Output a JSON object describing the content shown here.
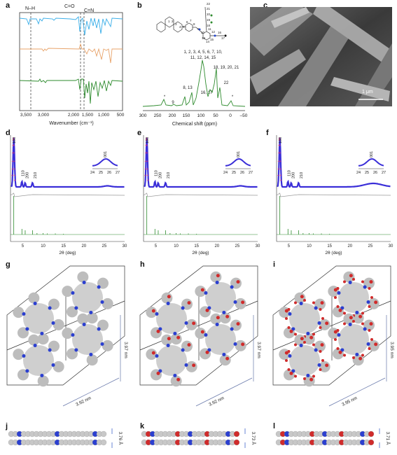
{
  "panel_labels": [
    "a",
    "b",
    "c",
    "d",
    "e",
    "f",
    "g",
    "h",
    "i",
    "j",
    "k",
    "l"
  ],
  "colors": {
    "blue": "#3aaee8",
    "orange": "#e8a36a",
    "green": "#2e8b2e",
    "purple": "#3a2ed8",
    "pink": "#e0306a",
    "grey": "#999999"
  },
  "chart_data": [
    {
      "type": "line",
      "panel": "a",
      "xlabel": "Wavenumber (cm⁻¹)",
      "xticks": [
        "3,500",
        "3,000",
        "2,000",
        "1,500",
        "1,000",
        "500"
      ],
      "annotations": [
        "N–H",
        "C=O",
        "C=N"
      ],
      "series": [
        {
          "color": "blue"
        },
        {
          "color": "orange"
        },
        {
          "color": "green"
        }
      ]
    },
    {
      "type": "line",
      "panel": "b",
      "xlabel": "Chemical shift (ppm)",
      "xticks": [
        "300",
        "250",
        "200",
        "150",
        "100",
        "50",
        "0",
        "–50"
      ],
      "xlim": [
        300,
        -50
      ],
      "peak_labels": [
        "1, 2, 3, 4, 5, 6, 7, 10,",
        "11, 12, 14, 15",
        "18, 19, 20, 21",
        "8, 13",
        "16, 17",
        "22",
        "9",
        "*",
        "*"
      ],
      "atom_labels": [
        "1",
        "2",
        "3",
        "4",
        "5",
        "6",
        "7",
        "8",
        "9",
        "10",
        "11",
        "12",
        "13",
        "14",
        "15",
        "16",
        "17",
        "18",
        "19",
        "20",
        "21",
        "22"
      ],
      "peaks_ppm": [
        {
          "label": "*",
          "ppm": 225
        },
        {
          "label": "9",
          "ppm": 190
        },
        {
          "label": "8, 13",
          "ppm": 155
        },
        {
          "label": "1–15",
          "ppm": 126
        },
        {
          "label": "16, 17",
          "ppm": 102
        },
        {
          "label": "18–21",
          "ppm": 65
        },
        {
          "label": "22",
          "ppm": 55
        },
        {
          "label": "*",
          "ppm": 28
        }
      ]
    },
    {
      "type": "scatter",
      "panels": [
        "d",
        "e",
        "f"
      ],
      "xlabel": "2θ (deg)",
      "xticks": [
        "5",
        "10",
        "15",
        "20",
        "25",
        "30"
      ],
      "xlim": [
        2,
        30
      ],
      "inset_xticks": [
        "24",
        "25",
        "26",
        "27"
      ],
      "inset_peak": "001",
      "reflections": [
        "100",
        "110",
        "200",
        "210"
      ]
    }
  ],
  "sem": {
    "scale_bar": "1 μm"
  },
  "structures": [
    {
      "panel": "g",
      "dim_vertical": "3.97 nm",
      "dim_diagonal": "3.92 nm"
    },
    {
      "panel": "h",
      "dim_vertical": "3.97 nm",
      "dim_diagonal": "3.92 nm"
    },
    {
      "panel": "i",
      "dim_vertical": "3.95 nm",
      "dim_diagonal": "3.95 nm"
    }
  ],
  "side_views": [
    {
      "panel": "j",
      "spacing": "3.76 Å"
    },
    {
      "panel": "k",
      "spacing": "3.73 Å"
    },
    {
      "panel": "l",
      "spacing": "3.71 Å"
    }
  ]
}
